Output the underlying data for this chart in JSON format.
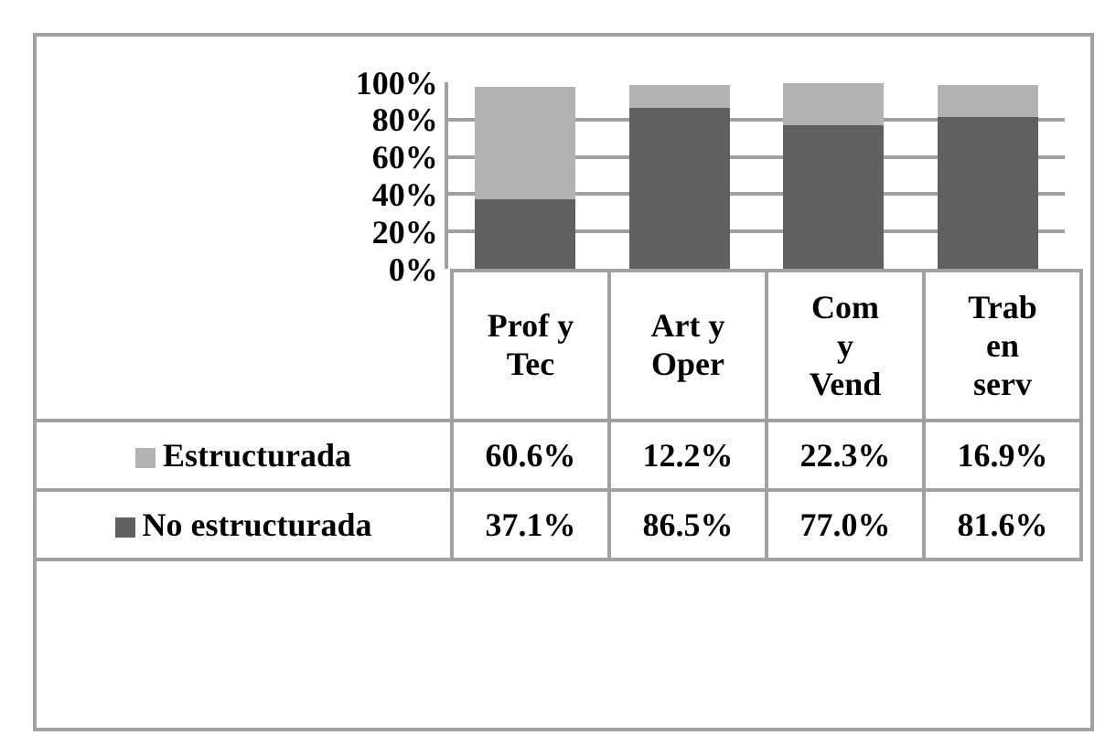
{
  "chart_data": {
    "type": "bar",
    "stacked": true,
    "categories": [
      "Prof y Tec",
      "Art y Oper",
      "Com y Vend",
      "Trab en serv"
    ],
    "series": [
      {
        "name": "No estructurada",
        "color": "#606060",
        "values": [
          37.1,
          86.5,
          77.0,
          81.6
        ],
        "value_labels": [
          "37.1%",
          "86.5%",
          "77.0%",
          "81.6%"
        ]
      },
      {
        "name": "Estructurada",
        "color": "#b2b2b2",
        "values": [
          60.6,
          12.2,
          22.3,
          16.9
        ],
        "value_labels": [
          "60.6%",
          "12.2%",
          "22.3%",
          "16.9%"
        ]
      }
    ],
    "ylim": [
      0,
      100
    ],
    "yticks": [
      {
        "value": 0,
        "label": "0%"
      },
      {
        "value": 20,
        "label": "20%"
      },
      {
        "value": 40,
        "label": "40%"
      },
      {
        "value": 60,
        "label": "60%"
      },
      {
        "value": 80,
        "label": "80%"
      },
      {
        "value": 100,
        "label": "100%"
      }
    ],
    "grid": "y",
    "legend": "bottom"
  }
}
